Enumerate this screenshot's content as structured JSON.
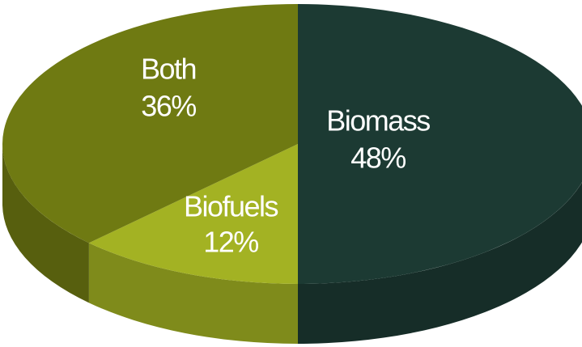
{
  "chart_data": {
    "type": "pie",
    "categories": [
      "Biomass",
      "Biofuels",
      "Both"
    ],
    "values": [
      48,
      12,
      36
    ],
    "value_labels": [
      "48%",
      "12%",
      "36%"
    ],
    "colors": [
      "#1c3a33",
      "#a3b223",
      "#6f7a12"
    ]
  }
}
